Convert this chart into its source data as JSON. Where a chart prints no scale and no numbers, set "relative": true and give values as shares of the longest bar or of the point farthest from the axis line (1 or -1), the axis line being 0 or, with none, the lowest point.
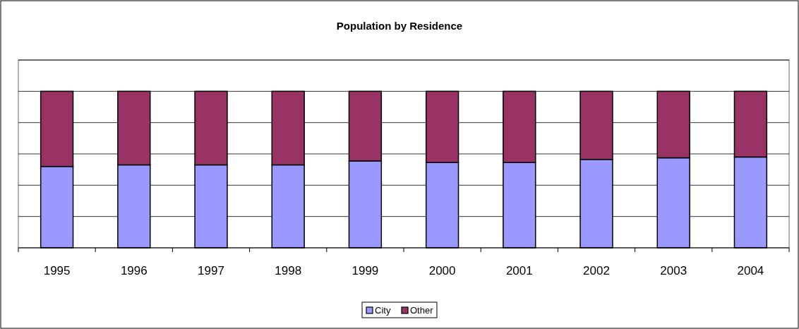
{
  "chart_data": {
    "type": "bar",
    "title": "Population by Residence",
    "stacked": true,
    "relative": true,
    "grid": "y",
    "legend": "bottom",
    "categories": [
      "1995",
      "1996",
      "1997",
      "1998",
      "1999",
      "2000",
      "2001",
      "2002",
      "2003",
      "2004"
    ],
    "series": [
      {
        "name": "City",
        "color": "#9999ff",
        "values": [
          0.52,
          0.53,
          0.53,
          0.53,
          0.555,
          0.545,
          0.545,
          0.565,
          0.575,
          0.58
        ]
      },
      {
        "name": "Other",
        "color": "#993366",
        "values": [
          0.48,
          0.47,
          0.47,
          0.47,
          0.445,
          0.455,
          0.455,
          0.435,
          0.425,
          0.42
        ]
      }
    ]
  }
}
